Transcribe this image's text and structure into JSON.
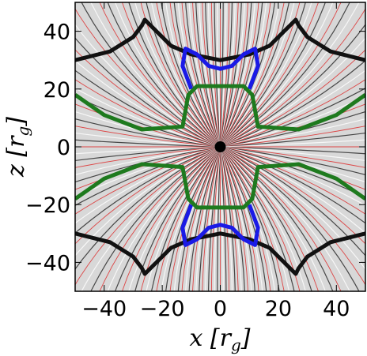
{
  "chart_data": {
    "type": "line",
    "xlabel": {
      "symbol": "x",
      "unit": "r",
      "sub": "g"
    },
    "ylabel": {
      "symbol": "z",
      "unit": "r",
      "sub": "g"
    },
    "xlim": [
      -50,
      50
    ],
    "ylim": [
      -50,
      50
    ],
    "xticks": [
      {
        "value": -40,
        "label": "−40"
      },
      {
        "value": -20,
        "label": "−20"
      },
      0,
      20,
      40
    ],
    "yticks": [
      {
        "value": -40,
        "label": "−40"
      },
      {
        "value": -20,
        "label": "−20"
      },
      0,
      20,
      40
    ],
    "series": [
      {
        "color": "#111111",
        "x": [
          -50,
          -38,
          -30,
          -27,
          -26,
          -22,
          -17,
          -10,
          0,
          10,
          17,
          22,
          26,
          27,
          30,
          38,
          50
        ],
        "values": [
          30,
          33,
          38,
          42,
          44,
          40,
          35,
          32,
          30,
          32,
          35,
          40,
          44,
          42,
          38,
          33,
          30
        ]
      },
      {
        "color": "#111111",
        "x": [
          -50,
          -38,
          -30,
          -27,
          -26,
          -22,
          -17,
          -10,
          0,
          10,
          17,
          22,
          26,
          27,
          30,
          38,
          50
        ],
        "values": [
          -30,
          -33,
          -38,
          -42,
          -44,
          -40,
          -35,
          -32,
          -30,
          -32,
          -35,
          -40,
          -44,
          -42,
          -38,
          -33,
          -30
        ]
      },
      {
        "color": "#1a1ae6",
        "x": [
          -10,
          -13,
          -12,
          -8,
          -4,
          0,
          4,
          8,
          12,
          13,
          10
        ],
        "values": [
          20,
          28,
          34,
          32,
          28,
          27,
          28,
          32,
          34,
          28,
          20
        ]
      },
      {
        "color": "#1a1ae6",
        "x": [
          -10,
          -13,
          -12,
          -8,
          -4,
          0,
          4,
          8,
          12,
          13,
          10
        ],
        "values": [
          -20,
          -28,
          -34,
          -32,
          -28,
          -27,
          -28,
          -32,
          -34,
          -28,
          -20
        ]
      },
      {
        "color": "#1e7a1e",
        "x": [
          -50,
          -40,
          -27,
          -13,
          -11,
          -8,
          0,
          8,
          11,
          13,
          27,
          40,
          50
        ],
        "values": [
          18,
          11,
          6,
          7,
          18,
          21,
          21,
          21,
          18,
          7,
          6,
          11,
          18
        ]
      },
      {
        "color": "#1e7a1e",
        "x": [
          -50,
          -40,
          -27,
          -13,
          -11,
          -8,
          0,
          8,
          11,
          13,
          27,
          40,
          50
        ],
        "values": [
          -18,
          -11,
          -6,
          -7,
          -18,
          -21,
          -21,
          -21,
          -18,
          -7,
          -6,
          -11,
          -18
        ]
      }
    ],
    "center": {
      "color": "#000000",
      "x": 0,
      "value": 0
    }
  }
}
